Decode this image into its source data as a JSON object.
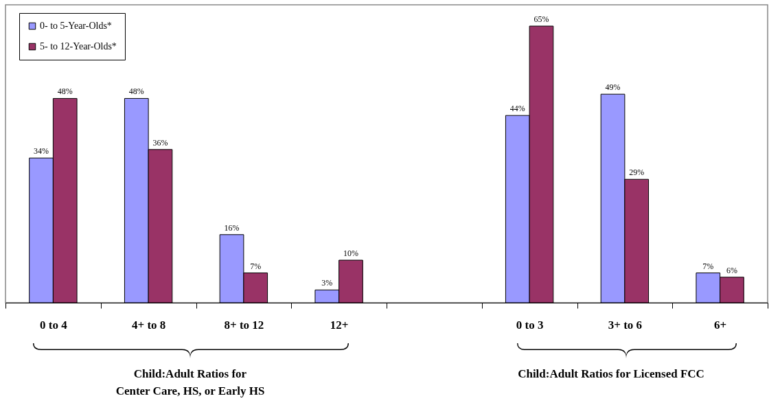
{
  "chart_data": {
    "type": "bar",
    "categories": [
      "0 to 4",
      "4+ to 8",
      "8+  to 12",
      "12+",
      null,
      "0 to 3",
      "3+ to 6",
      "6+"
    ],
    "series": [
      {
        "name": "0- to 5-Year-Olds*",
        "color": "#9999ff",
        "values": [
          34,
          48,
          16,
          3,
          null,
          44,
          49,
          7
        ],
        "value_labels": [
          "34%",
          "48%",
          "16%",
          "3%",
          null,
          "44%",
          "49%",
          "7%"
        ]
      },
      {
        "name": "5- to 12-Year-Olds*",
        "color": "#993366",
        "values": [
          48,
          36,
          7,
          10,
          null,
          65,
          29,
          6
        ],
        "value_labels": [
          "48%",
          "36%",
          "7%",
          "10%",
          null,
          "65%",
          "29%",
          "6%"
        ]
      }
    ],
    "ylim": [
      0,
      70
    ],
    "legend": "top left",
    "grid": false,
    "annotations": [
      "Child:Adult Ratios for\nCenter Care, HS, or Early HS",
      "Child:Adult Ratios for Licensed FCC"
    ]
  }
}
